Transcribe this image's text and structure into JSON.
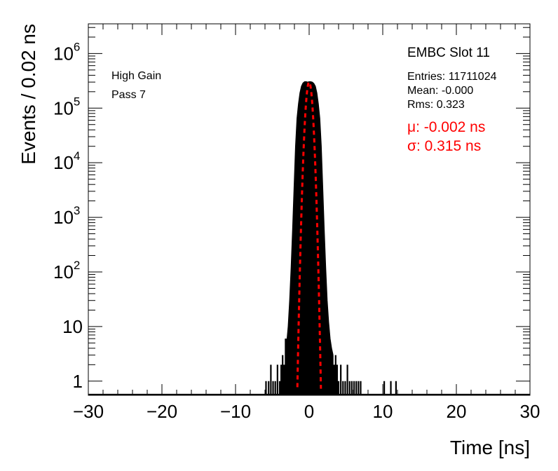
{
  "chart_data": {
    "type": "histogram",
    "title": "",
    "xlabel": "Time [ns]",
    "ylabel": "Events / 0.02 ns",
    "xlim": [
      -30,
      30
    ],
    "ylim": [
      0.55,
      3500000
    ],
    "yscale": "log",
    "xticks": [
      -30,
      -20,
      -10,
      0,
      10,
      20,
      30
    ],
    "xtick_labels": [
      "−30",
      "−20",
      "−10",
      "0",
      "10",
      "20",
      "30"
    ],
    "ydecades": [
      {
        "value": 1,
        "base": "1",
        "exp": ""
      },
      {
        "value": 10,
        "base": "10",
        "exp": ""
      },
      {
        "value": 100,
        "base": "10",
        "exp": "2"
      },
      {
        "value": 1000,
        "base": "10",
        "exp": "3"
      },
      {
        "value": 10000,
        "base": "10",
        "exp": "4"
      },
      {
        "value": 100000,
        "base": "10",
        "exp": "5"
      },
      {
        "value": 1000000,
        "base": "10",
        "exp": "6"
      }
    ],
    "series": [
      {
        "kind": "histogram",
        "color": "#000000",
        "x": [
          -5.86,
          -5.5,
          -5.2,
          -4.9,
          -4.6,
          -4.3,
          -4.0,
          -3.8,
          -3.6,
          -3.4,
          -3.2,
          -3.0,
          -2.8,
          -2.6,
          -2.4,
          -2.2,
          -2.0,
          -1.8,
          -1.6,
          -1.4,
          -1.2,
          -1.0,
          -0.8,
          -0.6,
          -0.4,
          -0.2,
          0.0,
          0.2,
          0.4,
          0.6,
          0.8,
          1.0,
          1.2,
          1.4,
          1.6,
          1.8,
          2.0,
          2.2,
          2.4,
          2.6,
          2.8,
          3.0,
          3.2,
          3.4,
          3.6,
          3.8,
          4.0,
          4.3,
          4.6,
          4.9,
          5.2,
          5.5,
          5.8,
          6.1,
          6.4,
          6.7,
          7.0,
          10.2,
          11.1,
          11.8
        ],
        "y": [
          1,
          1,
          2,
          1,
          1,
          2,
          1,
          2,
          3,
          2,
          6,
          5,
          10,
          30,
          120,
          600,
          3500,
          20000,
          65000,
          120000,
          190000,
          250000,
          285000,
          300000,
          300000,
          295000,
          300000,
          300000,
          295000,
          280000,
          250000,
          190000,
          120000,
          65000,
          20000,
          3500,
          600,
          120,
          30,
          12,
          6,
          4,
          3,
          2,
          3,
          2,
          1,
          2,
          1,
          1,
          2,
          1,
          1,
          1,
          1,
          1,
          1,
          1,
          1,
          1
        ]
      },
      {
        "kind": "gaussian-fit",
        "color": "#ff0000",
        "mu": -0.002,
        "sigma": 0.315,
        "amplitude": 300000,
        "x_range": [
          -1.6,
          1.6
        ]
      }
    ]
  },
  "annotations": {
    "left_line1": "High Gain",
    "left_line2": "Pass 7",
    "stats_title": "EMBC Slot 11",
    "entries": "Entries: 11711024",
    "mean": "Mean: -0.000",
    "rms": "Rms: 0.323",
    "fit_mu": "μ: -0.002 ns",
    "fit_sigma": "σ: 0.315 ns"
  }
}
